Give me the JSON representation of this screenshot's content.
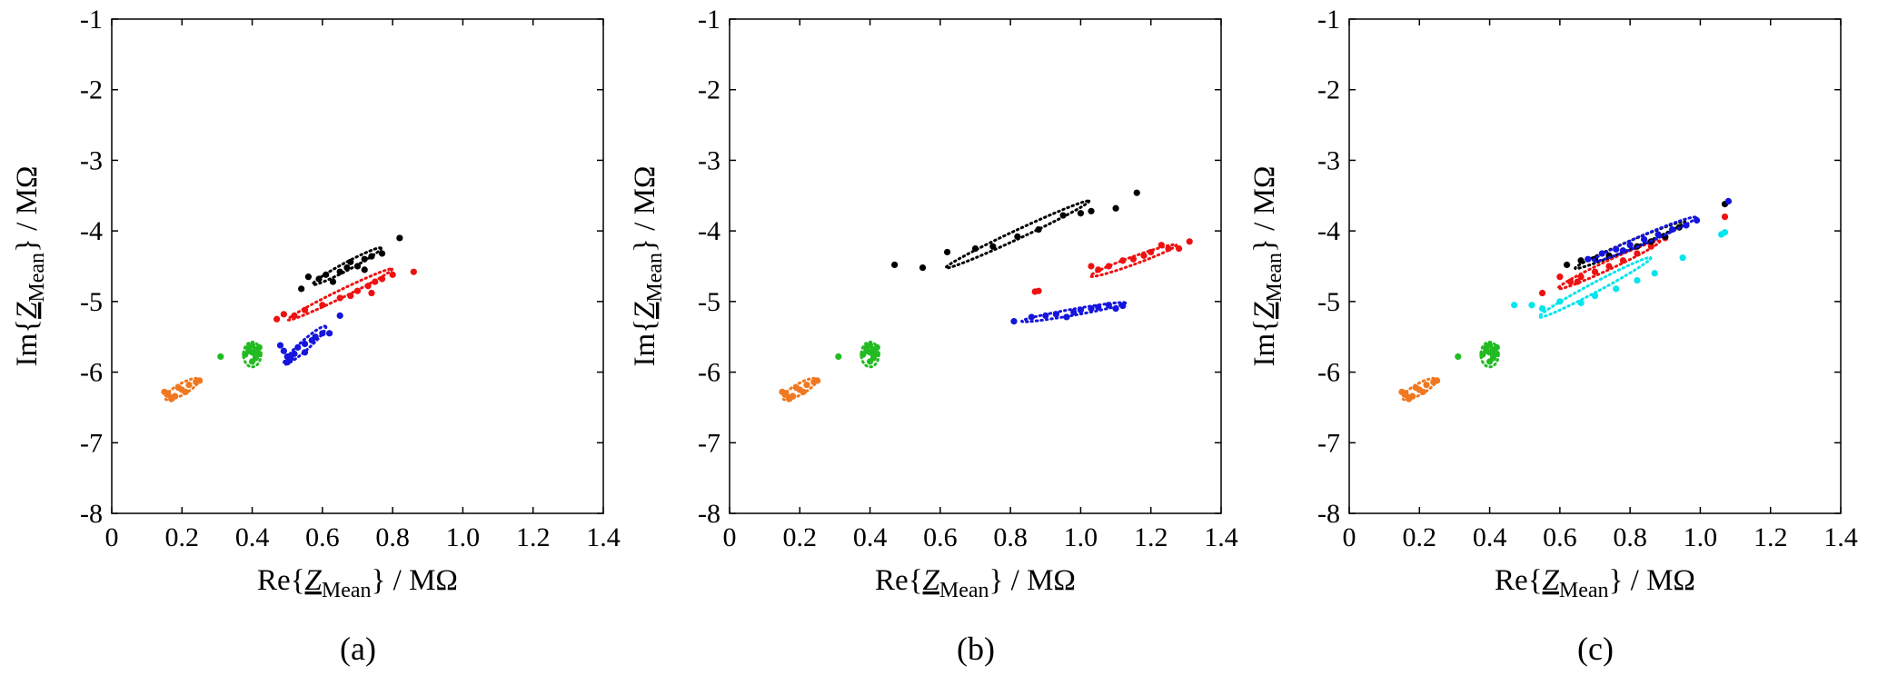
{
  "figure": {
    "x_tick_labels": [
      "0",
      "0.2",
      "0.4",
      "0.6",
      "0.8",
      "1.0",
      "1.2",
      "1.4"
    ],
    "y_tick_labels": [
      "-1",
      "-2",
      "-3",
      "-4",
      "-5",
      "-6",
      "-7",
      "-8"
    ],
    "xlabel": {
      "pre": "Re{",
      "z": "Z",
      "sub": "Mean",
      "post": "} / MΩ"
    },
    "ylabel": {
      "pre": "Im{",
      "z": "Z",
      "sub": "Mean",
      "post": "} / MΩ"
    }
  },
  "chart_data": [
    {
      "type": "scatter",
      "caption": "(a)",
      "xlim": [
        0,
        1.4
      ],
      "ylim": [
        -8,
        -1
      ],
      "series": [
        {
          "name": "orange",
          "color": "#F07820",
          "points": [
            [
              0.16,
              -6.32
            ],
            [
              0.17,
              -6.36
            ],
            [
              0.16,
              -6.3
            ],
            [
              0.18,
              -6.34
            ],
            [
              0.15,
              -6.28
            ],
            [
              0.2,
              -6.25
            ],
            [
              0.19,
              -6.22
            ],
            [
              0.22,
              -6.18
            ],
            [
              0.24,
              -6.14
            ],
            [
              0.25,
              -6.12
            ],
            [
              0.17,
              -6.38
            ],
            [
              0.21,
              -6.28
            ]
          ],
          "ellipse": {
            "cx": 0.2,
            "cy": -6.24,
            "rx": 0.055,
            "ry": 0.035,
            "angle": 30
          }
        },
        {
          "name": "green",
          "color": "#22BB22",
          "points": [
            [
              0.31,
              -5.78
            ],
            [
              0.39,
              -5.66
            ],
            [
              0.4,
              -5.72
            ],
            [
              0.41,
              -5.68
            ],
            [
              0.42,
              -5.74
            ],
            [
              0.4,
              -5.62
            ],
            [
              0.38,
              -5.75
            ],
            [
              0.41,
              -5.8
            ],
            [
              0.42,
              -5.65
            ],
            [
              0.4,
              -5.85
            ],
            [
              0.39,
              -5.7
            ],
            [
              0.41,
              -5.76
            ]
          ],
          "ellipse": {
            "cx": 0.4,
            "cy": -5.75,
            "rx": 0.025,
            "ry": 0.08,
            "angle": 0
          }
        },
        {
          "name": "blue",
          "color": "#1515DD",
          "points": [
            [
              0.48,
              -5.62
            ],
            [
              0.49,
              -5.7
            ],
            [
              0.5,
              -5.78
            ],
            [
              0.5,
              -5.86
            ],
            [
              0.52,
              -5.74
            ],
            [
              0.53,
              -5.65
            ],
            [
              0.55,
              -5.6
            ],
            [
              0.55,
              -5.72
            ],
            [
              0.57,
              -5.55
            ],
            [
              0.58,
              -5.5
            ],
            [
              0.6,
              -5.45
            ],
            [
              0.62,
              -5.45
            ],
            [
              0.65,
              -5.2
            ],
            [
              0.51,
              -5.8
            ]
          ],
          "ellipse": {
            "cx": 0.55,
            "cy": -5.62,
            "rx": 0.08,
            "ry": 0.03,
            "angle": 42
          }
        },
        {
          "name": "red",
          "color": "#EE1111",
          "points": [
            [
              0.47,
              -5.25
            ],
            [
              0.49,
              -5.18
            ],
            [
              0.52,
              -5.2
            ],
            [
              0.55,
              -5.12
            ],
            [
              0.6,
              -5.05
            ],
            [
              0.65,
              -4.95
            ],
            [
              0.68,
              -4.92
            ],
            [
              0.7,
              -4.85
            ],
            [
              0.73,
              -4.78
            ],
            [
              0.75,
              -4.72
            ],
            [
              0.77,
              -4.68
            ],
            [
              0.8,
              -4.62
            ],
            [
              0.86,
              -4.58
            ],
            [
              0.74,
              -4.88
            ]
          ],
          "ellipse": {
            "cx": 0.65,
            "cy": -4.9,
            "rx": 0.165,
            "ry": 0.025,
            "angle": 26
          }
        },
        {
          "name": "black",
          "color": "#000000",
          "points": [
            [
              0.56,
              -4.65
            ],
            [
              0.59,
              -4.68
            ],
            [
              0.61,
              -4.62
            ],
            [
              0.63,
              -4.72
            ],
            [
              0.65,
              -4.58
            ],
            [
              0.67,
              -4.52
            ],
            [
              0.68,
              -4.44
            ],
            [
              0.7,
              -4.5
            ],
            [
              0.72,
              -4.4
            ],
            [
              0.74,
              -4.36
            ],
            [
              0.77,
              -4.32
            ],
            [
              0.82,
              -4.1
            ],
            [
              0.54,
              -4.82
            ],
            [
              0.72,
              -4.55
            ]
          ],
          "ellipse": {
            "cx": 0.67,
            "cy": -4.5,
            "rx": 0.11,
            "ry": 0.025,
            "angle": 28
          }
        }
      ]
    },
    {
      "type": "scatter",
      "caption": "(b)",
      "xlim": [
        0,
        1.4
      ],
      "ylim": [
        -8,
        -1
      ],
      "series": [
        {
          "name": "orange",
          "color": "#F07820",
          "points": [
            [
              0.16,
              -6.32
            ],
            [
              0.17,
              -6.36
            ],
            [
              0.16,
              -6.3
            ],
            [
              0.18,
              -6.34
            ],
            [
              0.15,
              -6.28
            ],
            [
              0.2,
              -6.25
            ],
            [
              0.19,
              -6.22
            ],
            [
              0.22,
              -6.18
            ],
            [
              0.24,
              -6.14
            ],
            [
              0.25,
              -6.12
            ],
            [
              0.17,
              -6.38
            ],
            [
              0.21,
              -6.28
            ]
          ],
          "ellipse": {
            "cx": 0.2,
            "cy": -6.24,
            "rx": 0.055,
            "ry": 0.035,
            "angle": 30
          }
        },
        {
          "name": "green",
          "color": "#22BB22",
          "points": [
            [
              0.31,
              -5.78
            ],
            [
              0.39,
              -5.66
            ],
            [
              0.4,
              -5.72
            ],
            [
              0.41,
              -5.68
            ],
            [
              0.42,
              -5.74
            ],
            [
              0.4,
              -5.62
            ],
            [
              0.38,
              -5.75
            ],
            [
              0.41,
              -5.8
            ],
            [
              0.42,
              -5.65
            ],
            [
              0.4,
              -5.85
            ],
            [
              0.39,
              -5.7
            ],
            [
              0.41,
              -5.76
            ]
          ],
          "ellipse": {
            "cx": 0.4,
            "cy": -5.75,
            "rx": 0.025,
            "ry": 0.08,
            "angle": 0
          }
        },
        {
          "name": "blue",
          "color": "#1515DD",
          "points": [
            [
              0.81,
              -5.28
            ],
            [
              0.86,
              -5.22
            ],
            [
              0.9,
              -5.2
            ],
            [
              0.93,
              -5.18
            ],
            [
              0.96,
              -5.22
            ],
            [
              0.98,
              -5.15
            ],
            [
              1.0,
              -5.12
            ],
            [
              1.03,
              -5.1
            ],
            [
              1.05,
              -5.08
            ],
            [
              1.08,
              -5.05
            ],
            [
              1.1,
              -5.1
            ],
            [
              1.12,
              -5.06
            ]
          ],
          "ellipse": {
            "cx": 0.98,
            "cy": -5.15,
            "rx": 0.15,
            "ry": 0.02,
            "angle": 10
          }
        },
        {
          "name": "red",
          "color": "#EE1111",
          "points": [
            [
              0.87,
              -4.86
            ],
            [
              0.88,
              -4.85
            ],
            [
              1.03,
              -4.5
            ],
            [
              1.05,
              -4.55
            ],
            [
              1.08,
              -4.5
            ],
            [
              1.12,
              -4.42
            ],
            [
              1.15,
              -4.4
            ],
            [
              1.18,
              -4.35
            ],
            [
              1.2,
              -4.3
            ],
            [
              1.23,
              -4.2
            ],
            [
              1.25,
              -4.25
            ],
            [
              1.28,
              -4.25
            ],
            [
              1.31,
              -4.15
            ]
          ],
          "ellipse": {
            "cx": 1.15,
            "cy": -4.42,
            "rx": 0.13,
            "ry": 0.025,
            "angle": 20
          }
        },
        {
          "name": "black",
          "color": "#000000",
          "points": [
            [
              0.47,
              -4.48
            ],
            [
              0.55,
              -4.52
            ],
            [
              0.62,
              -4.3
            ],
            [
              0.7,
              -4.25
            ],
            [
              0.75,
              -4.22
            ],
            [
              0.82,
              -4.08
            ],
            [
              0.88,
              -3.98
            ],
            [
              0.95,
              -3.78
            ],
            [
              1.0,
              -3.75
            ],
            [
              1.03,
              -3.72
            ],
            [
              1.1,
              -3.68
            ],
            [
              1.16,
              -3.46
            ]
          ],
          "ellipse": {
            "cx": 0.82,
            "cy": -4.05,
            "rx": 0.225,
            "ry": 0.028,
            "angle": 25
          }
        }
      ]
    },
    {
      "type": "scatter",
      "caption": "(c)",
      "xlim": [
        0,
        1.4
      ],
      "ylim": [
        -8,
        -1
      ],
      "series": [
        {
          "name": "orange",
          "color": "#F07820",
          "points": [
            [
              0.16,
              -6.32
            ],
            [
              0.17,
              -6.36
            ],
            [
              0.16,
              -6.3
            ],
            [
              0.18,
              -6.34
            ],
            [
              0.15,
              -6.28
            ],
            [
              0.2,
              -6.25
            ],
            [
              0.19,
              -6.22
            ],
            [
              0.22,
              -6.18
            ],
            [
              0.24,
              -6.14
            ],
            [
              0.25,
              -6.12
            ],
            [
              0.17,
              -6.38
            ],
            [
              0.21,
              -6.28
            ]
          ],
          "ellipse": {
            "cx": 0.2,
            "cy": -6.24,
            "rx": 0.055,
            "ry": 0.035,
            "angle": 30
          }
        },
        {
          "name": "green",
          "color": "#22BB22",
          "points": [
            [
              0.31,
              -5.78
            ],
            [
              0.39,
              -5.66
            ],
            [
              0.4,
              -5.72
            ],
            [
              0.41,
              -5.68
            ],
            [
              0.42,
              -5.74
            ],
            [
              0.4,
              -5.62
            ],
            [
              0.38,
              -5.75
            ],
            [
              0.41,
              -5.8
            ],
            [
              0.42,
              -5.65
            ],
            [
              0.4,
              -5.85
            ],
            [
              0.39,
              -5.7
            ],
            [
              0.41,
              -5.76
            ]
          ],
          "ellipse": {
            "cx": 0.4,
            "cy": -5.75,
            "rx": 0.025,
            "ry": 0.08,
            "angle": 0
          }
        },
        {
          "name": "cyan",
          "color": "#00E5EE",
          "points": [
            [
              0.47,
              -5.05
            ],
            [
              0.52,
              -5.05
            ],
            [
              0.55,
              -5.1
            ],
            [
              0.6,
              -5.0
            ],
            [
              0.66,
              -5.02
            ],
            [
              0.7,
              -4.92
            ],
            [
              0.76,
              -4.82
            ],
            [
              0.82,
              -4.7
            ],
            [
              0.87,
              -4.6
            ],
            [
              0.95,
              -4.38
            ],
            [
              1.06,
              -4.05
            ],
            [
              1.07,
              -4.02
            ]
          ],
          "ellipse": {
            "cx": 0.7,
            "cy": -4.8,
            "rx": 0.18,
            "ry": 0.03,
            "angle": 28
          }
        },
        {
          "name": "red",
          "color": "#EE1111",
          "points": [
            [
              0.55,
              -4.88
            ],
            [
              0.6,
              -4.65
            ],
            [
              0.63,
              -4.72
            ],
            [
              0.66,
              -4.65
            ],
            [
              0.7,
              -4.58
            ],
            [
              0.74,
              -4.5
            ],
            [
              0.78,
              -4.42
            ],
            [
              0.82,
              -4.32
            ],
            [
              0.86,
              -4.22
            ],
            [
              0.9,
              -4.1
            ],
            [
              1.07,
              -3.8
            ],
            [
              0.65,
              -4.72
            ]
          ],
          "ellipse": {
            "cx": 0.74,
            "cy": -4.48,
            "rx": 0.16,
            "ry": 0.028,
            "angle": 25
          }
        },
        {
          "name": "black",
          "color": "#000000",
          "points": [
            [
              0.62,
              -4.48
            ],
            [
              0.66,
              -4.42
            ],
            [
              0.7,
              -4.4
            ],
            [
              0.74,
              -4.35
            ],
            [
              0.78,
              -4.28
            ],
            [
              0.82,
              -4.22
            ],
            [
              0.86,
              -4.15
            ],
            [
              0.9,
              -4.08
            ],
            [
              0.94,
              -3.95
            ],
            [
              1.08,
              -3.58
            ],
            [
              1.07,
              -3.62
            ]
          ],
          "ellipse": {
            "cx": 0.8,
            "cy": -4.2,
            "rx": 0.17,
            "ry": 0.025,
            "angle": 23
          }
        },
        {
          "name": "blue",
          "color": "#1515DD",
          "points": [
            [
              0.68,
              -4.4
            ],
            [
              0.72,
              -4.32
            ],
            [
              0.76,
              -4.26
            ],
            [
              0.8,
              -4.2
            ],
            [
              0.84,
              -4.12
            ],
            [
              0.88,
              -4.05
            ],
            [
              0.92,
              -3.98
            ],
            [
              0.96,
              -3.92
            ],
            [
              0.99,
              -3.85
            ],
            [
              1.08,
              -3.58
            ],
            [
              0.78,
              -4.28
            ]
          ],
          "ellipse": {
            "cx": 0.84,
            "cy": -4.12,
            "rx": 0.16,
            "ry": 0.028,
            "angle": 23
          }
        }
      ]
    }
  ]
}
